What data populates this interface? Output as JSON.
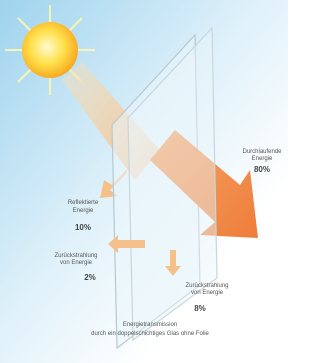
{
  "labels": [
    {
      "lines": [
        "Durchlaufende",
        "Energie"
      ],
      "value": "80%"
    },
    {
      "lines": [
        "Reflektierte",
        "Energie"
      ],
      "value": "10%"
    },
    {
      "lines": [
        "Zurückstrahlung",
        "von Energie"
      ],
      "value": "2%"
    },
    {
      "lines": [
        "Zurückstrahlung",
        "von Energie"
      ],
      "value": "8%"
    }
  ],
  "caption": [
    "Energietransmission",
    "durch ein doppelschichtiges Glas ohne Folie"
  ]
}
